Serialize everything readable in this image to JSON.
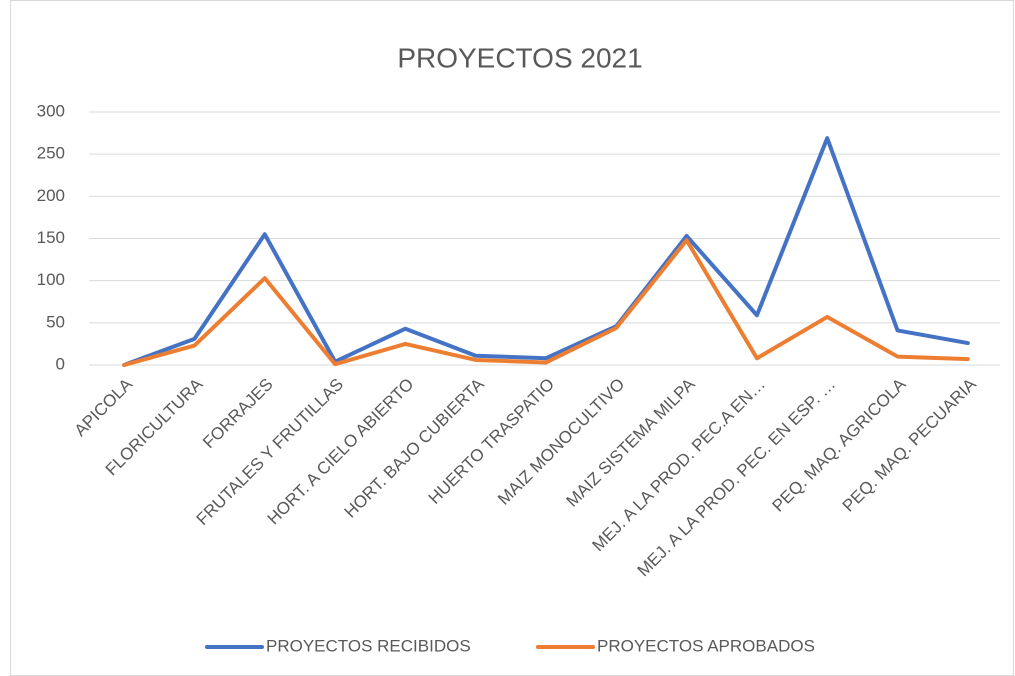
{
  "chart_data": {
    "type": "line",
    "title": "PROYECTOS 2021",
    "categories": [
      "APICOLA",
      "FLORICULTURA",
      "FORRAJES",
      "FRUTALES Y FRUTILLAS",
      "HORT. A CIELO ABIERTO",
      "HORT. BAJO CUBIERTA",
      "HUERTO TRASPATIO",
      "MAIZ MONOCULTIVO",
      "MAIZ SISTEMA MILPA",
      "MEJ. A LA PROD. PEC.A EN…",
      "MEJ. A LA PROD. PEC. EN ESP. …",
      "PEQ. MAQ. AGRICOLA",
      "PEQ. MAQ. PECUARIA"
    ],
    "series": [
      {
        "name": "PROYECTOS RECIBIDOS",
        "color": "#4472c4",
        "values": [
          0,
          31,
          155,
          4,
          43,
          11,
          8,
          46,
          153,
          59,
          269,
          41,
          26
        ]
      },
      {
        "name": "PROYECTOS APROBADOS",
        "color": "#ed7d31",
        "values": [
          0,
          23,
          103,
          1,
          25,
          6,
          3,
          44,
          148,
          8,
          57,
          10,
          7
        ]
      }
    ],
    "ylim": [
      0,
      300
    ],
    "yticks": [
      0,
      50,
      100,
      150,
      200,
      250,
      300
    ],
    "grid": true,
    "legend": "bottom"
  }
}
